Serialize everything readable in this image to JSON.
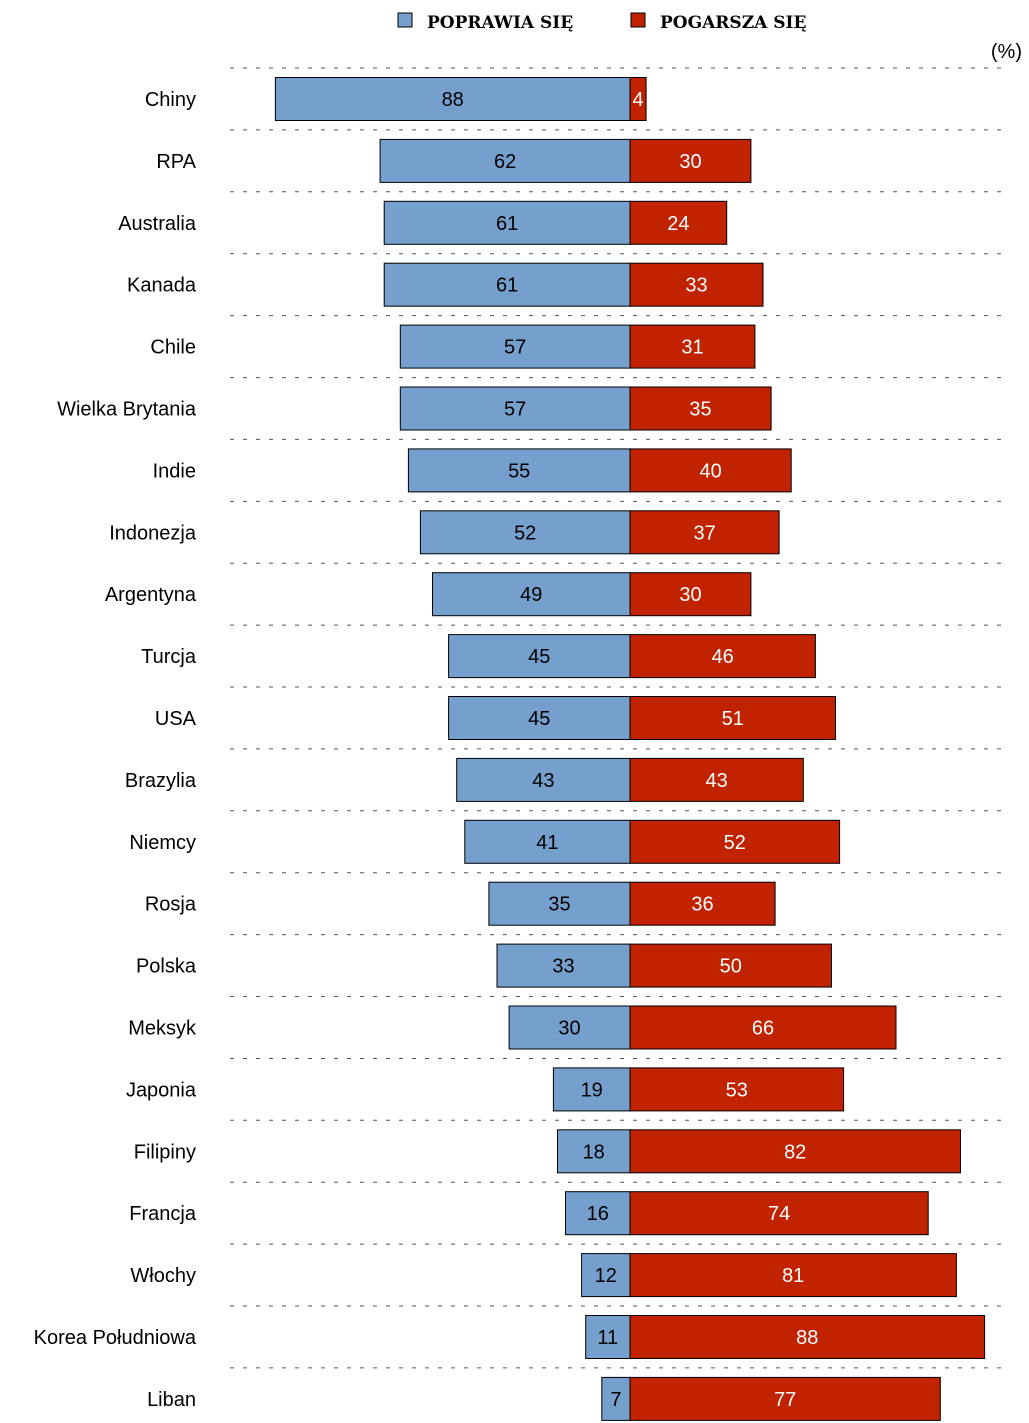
{
  "chart_data": {
    "type": "bar",
    "orientation": "horizontal-diverging",
    "unit": "(%)",
    "categories": [
      "Chiny",
      "RPA",
      "Australia",
      "Kanada",
      "Chile",
      "Wielka Brytania",
      "Indie",
      "Indonezja",
      "Argentyna",
      "Turcja",
      "USA",
      "Brazylia",
      "Niemcy",
      "Rosja",
      "Polska",
      "Meksyk",
      "Japonia",
      "Filipiny",
      "Francja",
      "Włochy",
      "Korea Południowa",
      "Liban"
    ],
    "series": [
      {
        "name": "POPRAWIA SIĘ",
        "color": "#759fcd",
        "direction": "left",
        "values": [
          88,
          62,
          61,
          61,
          57,
          57,
          55,
          52,
          49,
          45,
          45,
          43,
          41,
          35,
          33,
          30,
          19,
          18,
          16,
          12,
          11,
          7
        ]
      },
      {
        "name": "POGARSZA SIĘ",
        "color": "#c12200",
        "direction": "right",
        "values": [
          4,
          30,
          24,
          33,
          31,
          35,
          40,
          37,
          30,
          46,
          51,
          43,
          52,
          36,
          50,
          66,
          53,
          82,
          74,
          81,
          88,
          77
        ]
      }
    ],
    "legend_position": "top-center",
    "grid": "dotted-horizontal"
  }
}
